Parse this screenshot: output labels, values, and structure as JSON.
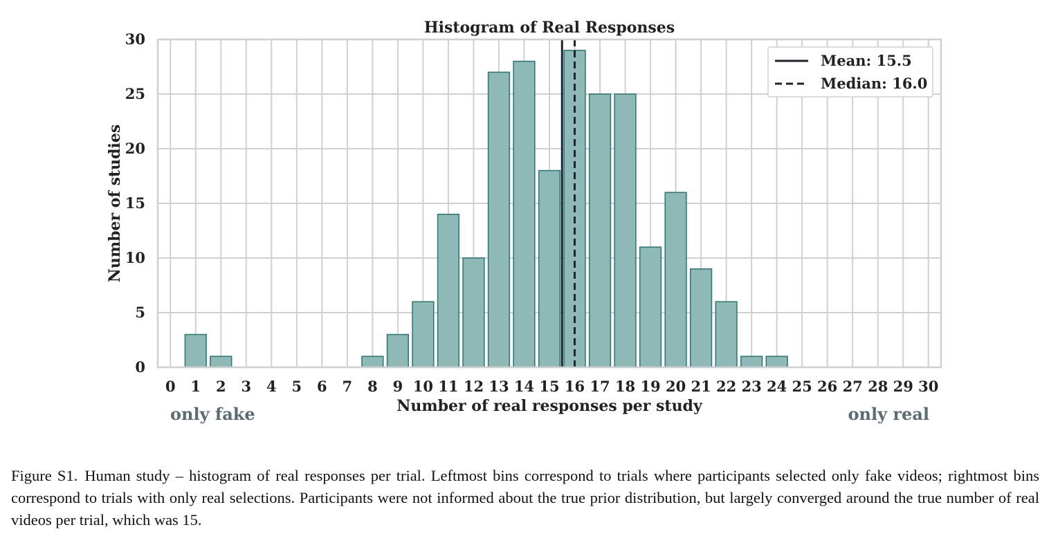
{
  "chart_data": {
    "type": "bar",
    "title": "Histogram of Real Responses",
    "xlabel": "Number of real responses per study",
    "ylabel": "Number of studies",
    "x_left_note": "only fake",
    "x_right_note": "only real",
    "categories": [
      "0",
      "1",
      "2",
      "3",
      "4",
      "5",
      "6",
      "7",
      "8",
      "9",
      "10",
      "11",
      "12",
      "13",
      "14",
      "15",
      "16",
      "17",
      "18",
      "19",
      "20",
      "21",
      "22",
      "23",
      "24",
      "25",
      "26",
      "27",
      "28",
      "29",
      "30"
    ],
    "values": [
      0,
      3,
      1,
      0,
      0,
      0,
      0,
      0,
      1,
      3,
      6,
      14,
      10,
      27,
      28,
      18,
      29,
      25,
      25,
      11,
      16,
      9,
      6,
      1,
      1,
      0,
      0,
      0,
      0,
      0,
      0
    ],
    "ylim": [
      0,
      30
    ],
    "yticks": [
      "0",
      "5",
      "10",
      "15",
      "20",
      "25",
      "30"
    ],
    "grid": true,
    "legend_position": "top-right",
    "reference_lines": [
      {
        "value": 15.5,
        "style": "solid",
        "label": "Mean: 15.5"
      },
      {
        "value": 16.0,
        "style": "dashed",
        "label": "Median: 16.0"
      }
    ],
    "colors": {
      "bar_fill": "#8fb9b6",
      "bar_edge": "#2f7a74",
      "line": "#1b2430",
      "grid": "#d0d0d0"
    }
  },
  "caption": {
    "label": "Figure S1.",
    "text": "Human study – histogram of real responses per trial. Leftmost bins correspond to trials where participants selected only fake videos; rightmost bins correspond to trials with only real selections. Participants were not informed about the true prior distribution, but largely converged around the true number of real videos per trial, which was 15."
  }
}
